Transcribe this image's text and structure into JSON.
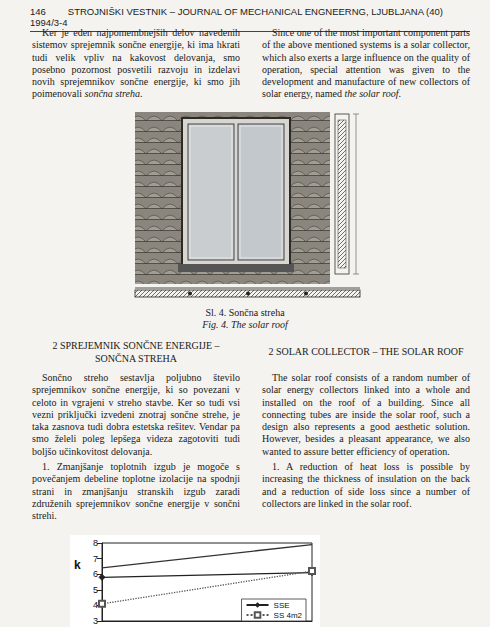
{
  "header": {
    "page": "146",
    "journal": "STROJNIŠKI VESTNIK – JOURNAL OF MECHANICAL ENGNEERNG, LJUBLJANA (40) 1994/3-4"
  },
  "intro": {
    "sl": {
      "text": "Ker je eden najpomembnejših delov navedenih sistemov sprejemnik sončne energije, ki ima hkrati tudi velik vpliv na kakovost delovanja, smo posebno pozornost posvetili razvoju in izdelavi novih sprejemnikov sončne energije, ki smo jih poimenovali ",
      "italic": "sončna streha",
      "end": "."
    },
    "en": {
      "text": "Since one of the most important component parts of the above mentioned systems is a solar collector, which also exerts a large influence on the quality of operation, special attention was given to the development and manufacture of new collectors of solar energy, named ",
      "italic": "the solar roof",
      "end": "."
    }
  },
  "figure": {
    "caption_sl": "Sl. 4. Sončna streha",
    "caption_en": "Fig. 4. The solar roof"
  },
  "section": {
    "heading_sl": "2 SPREJEMNIK SONČNE ENERGIJE – SONČNA STREHA",
    "heading_en": "2 SOLAR COLLECTOR – THE SOLAR ROOF",
    "paragraphs_sl": [
      "Sončno streho sestavlja poljubno število sprejemnikov sončne energije, ki so povezani v celoto in vgrajeni v streho stavbe. Ker so tudi vsi vezni priključki izvedeni znotraj sončne strehe, je taka zasnova tudi dobra estetska rešitev. Vendar pa smo želeli poleg lepšega videza zagotoviti tudi boljšo učinkovitost delovanja.",
      "1. Zmanjšanje toplotnih izgub je mogoče s povečanjem debeline toplotne izolacije na spodnji strani in zmanjšanju stranskih izgub zaradi združenih sprejemnikov sončne energije v sončni strehi."
    ],
    "paragraphs_en": [
      "The solar roof consists of a random number of solar energy collectors linked into a whole and installed on the roof of a building. Since all connecting tubes are inside the solar roof, such a design also represents a good aesthetic solution. However, besides a pleasant appearance, we also wanted to assure better efficiency of operation.",
      "1. A reduction of heat loss is possible by increasing the thickness of insulation on the back and a reduction of side loss since a number of collectors are linked in the solar roof."
    ]
  },
  "chart_data": {
    "type": "line",
    "ylabel": "k",
    "categories": [
      null,
      null
    ],
    "series": [
      {
        "color": "#333333",
        "values": [
          6.4,
          7.9
        ]
      },
      {
        "name": "SSE",
        "color": "#222222",
        "marker": "diamond",
        "values": [
          5.8,
          6.1
        ]
      },
      {
        "name": "SS 4m2",
        "color": "#555555",
        "marker": "square",
        "line_style": "dotted",
        "values": [
          4.1,
          6.2
        ]
      }
    ],
    "ylim": [
      3,
      8
    ],
    "yticks": [
      3,
      4,
      5,
      6,
      7,
      8
    ],
    "tick_labels": "y",
    "legend": "lower right"
  }
}
